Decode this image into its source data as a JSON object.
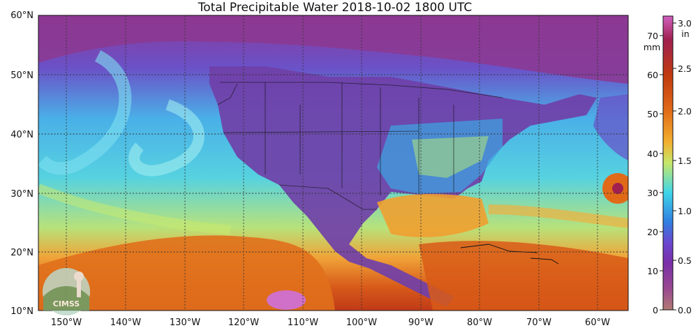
{
  "title": "Total Precipitable Water  2018-10-02 1800 UTC",
  "lat_labels": [
    "60°N",
    "50°N",
    "40°N",
    "30°N",
    "20°N",
    "10°N"
  ],
  "lon_labels": [
    "150°W",
    "140°W",
    "130°W",
    "120°W",
    "110°W",
    "100°W",
    "90°W",
    "80°W",
    "70°W",
    "60°W"
  ],
  "colorbar": {
    "mm_unit": "mm",
    "in_unit": "in",
    "mm_ticks": [
      "0",
      "10",
      "20",
      "30",
      "40",
      "50",
      "60",
      "70"
    ],
    "in_ticks": [
      "0.0",
      "0.5",
      "1.0",
      "1.5",
      "2.0",
      "2.5",
      "3.0"
    ],
    "colors": [
      "#b07a72",
      "#8a2f9a",
      "#6a40c8",
      "#2f7fe0",
      "#3fd6e8",
      "#c6e86a",
      "#f2b030",
      "#e06a18",
      "#c03a10",
      "#a02050",
      "#d060c0"
    ]
  },
  "logo_text": "CIMSS"
}
